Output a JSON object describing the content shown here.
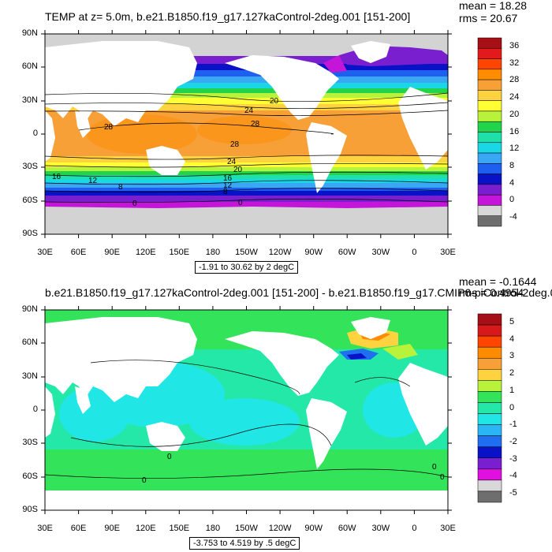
{
  "panels": [
    {
      "title": "TEMP at z=   5.0m, b.e21.B1850.f19_g17.127kaControl-2deg.001 [151-200]",
      "mean": "mean = 18.28",
      "rms": "rms = 20.67",
      "caption": "-1.91 to 30.62 by 2 degC",
      "lat_labels": [
        "90N",
        "60N",
        "30N",
        "0",
        "30S",
        "60S",
        "90S"
      ],
      "lon_labels": [
        "30E",
        "60E",
        "90E",
        "120E",
        "150E",
        "180",
        "150W",
        "120W",
        "90W",
        "60W",
        "30W",
        "0",
        "30E"
      ],
      "colorbar": {
        "labels": [
          "36",
          "32",
          "28",
          "24",
          "20",
          "16",
          "12",
          "8",
          "4",
          "0",
          "-4"
        ],
        "colors": [
          "#a50f15",
          "#e31a1c",
          "#ff4500",
          "#ff8c00",
          "#f7a038",
          "#ffd23f",
          "#ffff33",
          "#b8f23a",
          "#22d44a",
          "#1fe0a8",
          "#1ad7e6",
          "#3aa7f5",
          "#1f5ff0",
          "#0a12c8",
          "#7a1fd0",
          "#c416d8",
          "#d8d8d8",
          "#6e6e6e"
        ]
      },
      "contour_labels": [
        "24",
        "20",
        "28",
        "28",
        "28",
        "24",
        "20",
        "16",
        "12",
        "8",
        "16",
        "12",
        "8",
        "0",
        "0"
      ]
    },
    {
      "title": "b.e21.B1850.f19_g17.127kaControl-2deg.001 [151-200] - b.e21.B1850.f19_g17.CMIP6-piControl-2deg.0",
      "mean": "mean = -0.1644",
      "rms": "rms = 0.4954",
      "caption": "-3.753 to 4.519 by .5 degC",
      "lat_labels": [
        "90N",
        "60N",
        "30N",
        "0",
        "30S",
        "60S",
        "90S"
      ],
      "lon_labels": [
        "30E",
        "60E",
        "90E",
        "120E",
        "150E",
        "180",
        "150W",
        "120W",
        "90W",
        "60W",
        "30W",
        "0",
        "30E"
      ],
      "colorbar": {
        "labels": [
          "5",
          "4",
          "3",
          "2",
          "1",
          "0",
          "-1",
          "-2",
          "-3",
          "-4",
          "-5"
        ],
        "colors": [
          "#a50f15",
          "#d7191c",
          "#ff4500",
          "#ff8c00",
          "#f7a038",
          "#ffd23f",
          "#b8f23a",
          "#33e35a",
          "#24e8a8",
          "#20e6e6",
          "#2ab5f5",
          "#1f6ff0",
          "#0a12c8",
          "#7a1fd0",
          "#e010e0",
          "#d8d8d8",
          "#6e6e6e"
        ]
      },
      "contour_labels": [
        "0",
        "0",
        "0",
        "0"
      ]
    }
  ]
}
